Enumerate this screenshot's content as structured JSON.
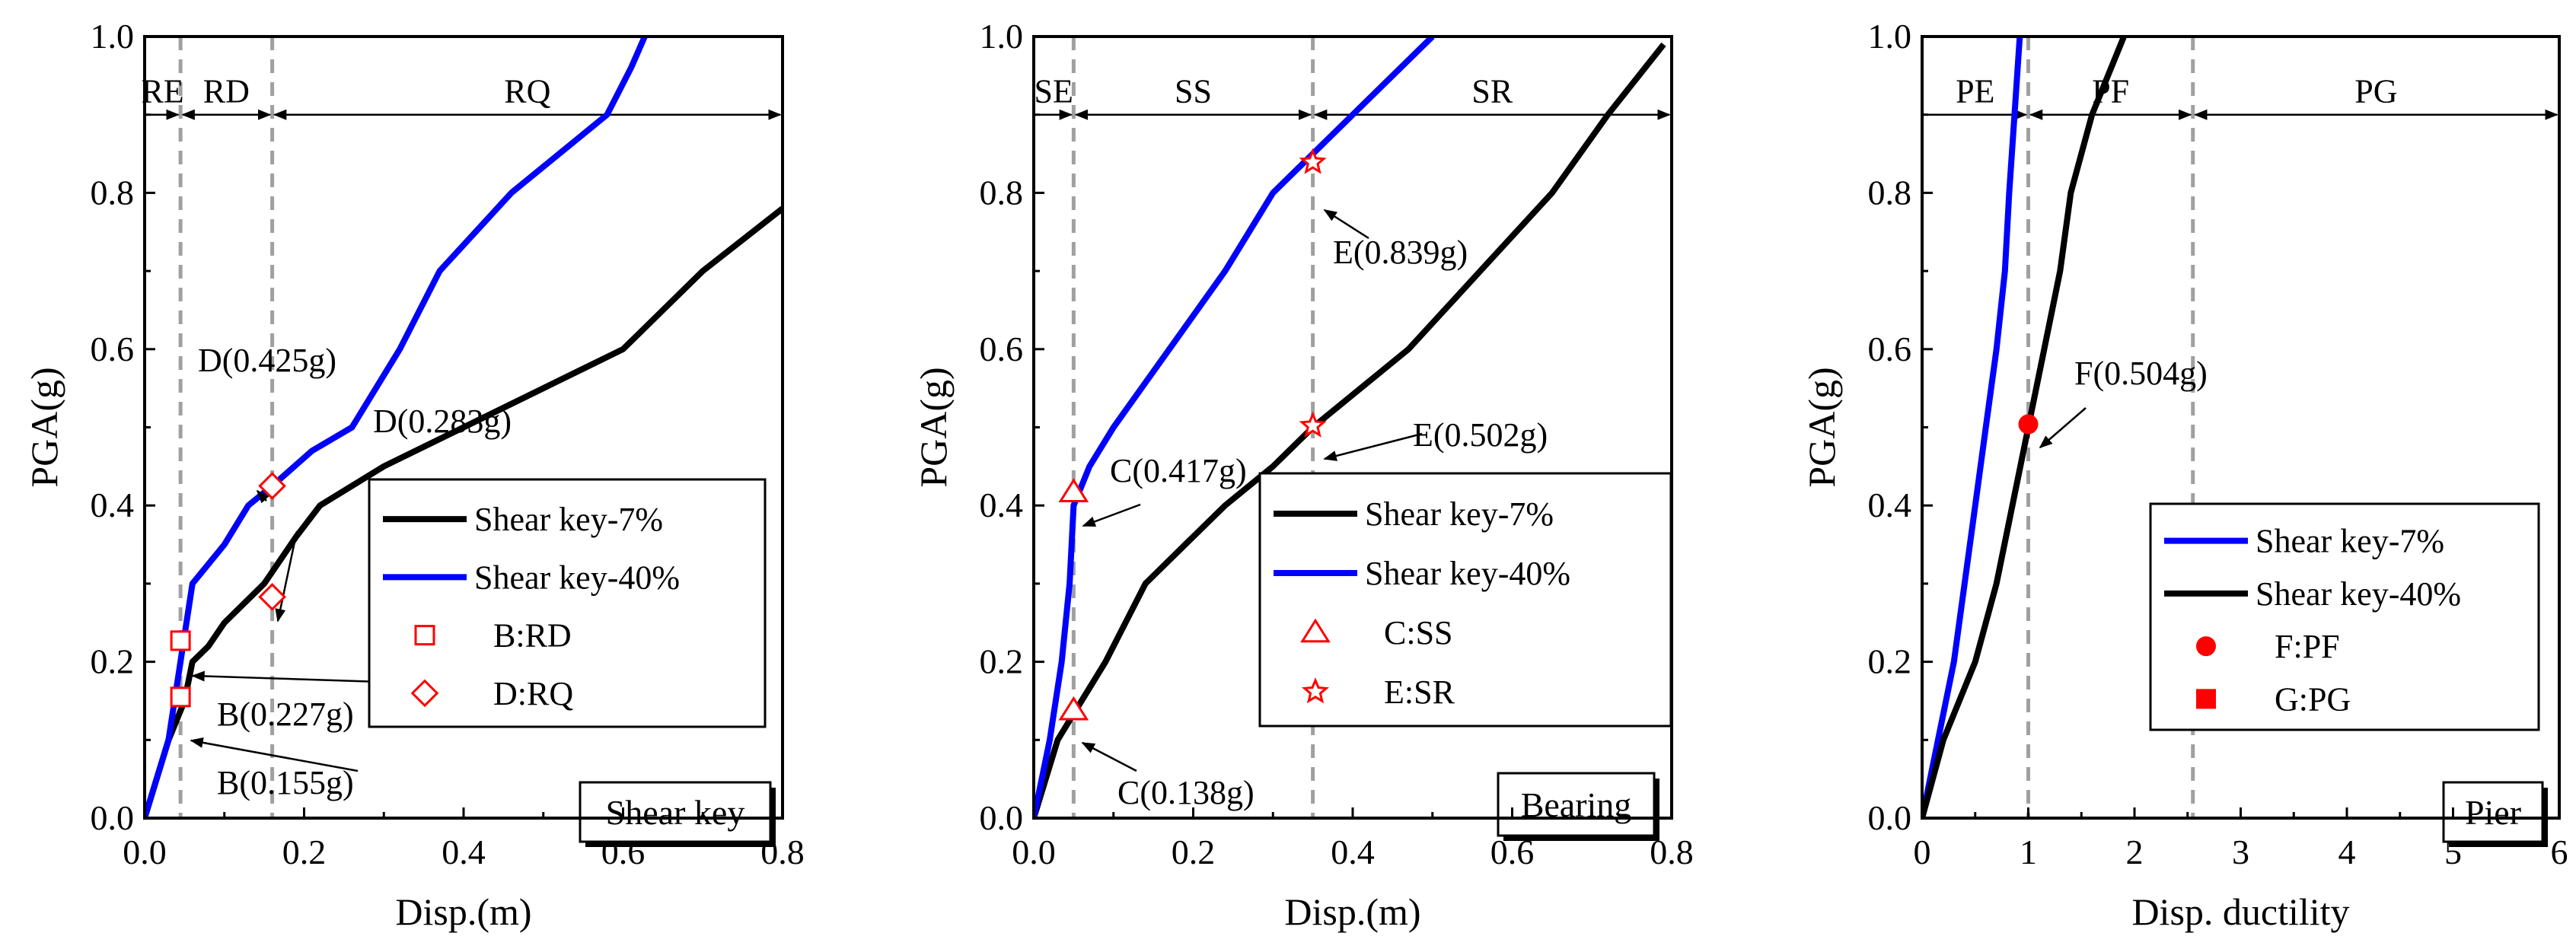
{
  "chart_data": [
    {
      "type": "line",
      "panel": "shear-key",
      "title": "Shear key",
      "xlabel": "Disp.(m)",
      "ylabel": "PGA(g)",
      "xlim": [
        0,
        0.8
      ],
      "ylim": [
        0,
        1.0
      ],
      "x_ticks": [
        0.0,
        0.2,
        0.4,
        0.6,
        0.8
      ],
      "y_ticks": [
        0.0,
        0.2,
        0.4,
        0.6,
        0.8,
        1.0
      ],
      "x_tick_labels": [
        "0.0",
        "0.2",
        "0.4",
        "0.6",
        "0.8"
      ],
      "y_tick_labels": [
        "0.0",
        "0.2",
        "0.4",
        "0.6",
        "0.8",
        "1.0"
      ],
      "legend_position": "middle-right",
      "series": [
        {
          "name": "Shear key-7%",
          "color": "#000000",
          "points": [
            [
              0,
              0
            ],
            [
              0.03,
              0.1
            ],
            [
              0.05,
              0.15
            ],
            [
              0.06,
              0.2
            ],
            [
              0.08,
              0.22
            ],
            [
              0.1,
              0.25
            ],
            [
              0.15,
              0.3
            ],
            [
              0.19,
              0.36
            ],
            [
              0.22,
              0.4
            ],
            [
              0.3,
              0.45
            ],
            [
              0.4,
              0.5
            ],
            [
              0.5,
              0.55
            ],
            [
              0.6,
              0.6
            ],
            [
              0.7,
              0.7
            ],
            [
              0.8,
              0.78
            ]
          ]
        },
        {
          "name": "Shear key-40%",
          "color": "#0000ff",
          "points": [
            [
              0,
              0
            ],
            [
              0.03,
              0.1
            ],
            [
              0.045,
              0.2
            ],
            [
              0.06,
              0.3
            ],
            [
              0.1,
              0.35
            ],
            [
              0.13,
              0.4
            ],
            [
              0.16,
              0.425
            ],
            [
              0.21,
              0.47
            ],
            [
              0.26,
              0.5
            ],
            [
              0.32,
              0.6
            ],
            [
              0.37,
              0.7
            ],
            [
              0.46,
              0.8
            ],
            [
              0.58,
              0.9
            ],
            [
              0.61,
              0.96
            ],
            [
              0.64,
              1.03
            ]
          ]
        }
      ],
      "limit_state_lines": [
        0.045,
        0.16
      ],
      "regions": [
        {
          "label": "RE",
          "from": 0,
          "to": 0.045
        },
        {
          "label": "RD",
          "from": 0.045,
          "to": 0.16
        },
        {
          "label": "RQ",
          "from": 0.16,
          "to": 0.8
        }
      ],
      "region_arrow_y": 0.9,
      "marker_legend": [
        {
          "label": "B:RD",
          "marker": "square"
        },
        {
          "label": "D:RQ",
          "marker": "diamond"
        }
      ],
      "markers": [
        {
          "x": 0.045,
          "y": 0.227,
          "marker": "square",
          "label": "B(0.227g)"
        },
        {
          "x": 0.045,
          "y": 0.155,
          "marker": "square",
          "label": "B(0.155g)"
        },
        {
          "x": 0.16,
          "y": 0.425,
          "marker": "diamond",
          "label": "D(0.425g)"
        },
        {
          "x": 0.16,
          "y": 0.283,
          "marker": "diamond",
          "label": "D(0.283g)"
        }
      ]
    },
    {
      "type": "line",
      "panel": "bearing",
      "title": "Bearing",
      "xlabel": "Disp.(m)",
      "ylabel": "PGA(g)",
      "xlim": [
        0,
        0.8
      ],
      "ylim": [
        0,
        1.0
      ],
      "x_ticks": [
        0.0,
        0.2,
        0.4,
        0.6,
        0.8
      ],
      "y_ticks": [
        0.0,
        0.2,
        0.4,
        0.6,
        0.8,
        1.0
      ],
      "x_tick_labels": [
        "0.0",
        "0.2",
        "0.4",
        "0.6",
        "0.8"
      ],
      "y_tick_labels": [
        "0.0",
        "0.2",
        "0.4",
        "0.6",
        "0.8",
        "1.0"
      ],
      "legend_position": "middle-right",
      "series": [
        {
          "name": "Shear key-7%",
          "color": "#000000",
          "points": [
            [
              0,
              0
            ],
            [
              0.03,
              0.1
            ],
            [
              0.06,
              0.15
            ],
            [
              0.09,
              0.2
            ],
            [
              0.14,
              0.3
            ],
            [
              0.19,
              0.35
            ],
            [
              0.24,
              0.4
            ],
            [
              0.3,
              0.45
            ],
            [
              0.35,
              0.5
            ],
            [
              0.47,
              0.6
            ],
            [
              0.56,
              0.7
            ],
            [
              0.65,
              0.8
            ],
            [
              0.72,
              0.9
            ],
            [
              0.79,
              0.99
            ]
          ]
        },
        {
          "name": "Shear key-40%",
          "color": "#0000ff",
          "points": [
            [
              0,
              0
            ],
            [
              0.02,
              0.1
            ],
            [
              0.035,
              0.2
            ],
            [
              0.045,
              0.3
            ],
            [
              0.05,
              0.4
            ],
            [
              0.07,
              0.45
            ],
            [
              0.1,
              0.5
            ],
            [
              0.17,
              0.6
            ],
            [
              0.24,
              0.7
            ],
            [
              0.3,
              0.8
            ],
            [
              0.35,
              0.85
            ],
            [
              0.4,
              0.9
            ],
            [
              0.5,
              1.0
            ]
          ]
        }
      ],
      "limit_state_lines": [
        0.05,
        0.35
      ],
      "regions": [
        {
          "label": "SE",
          "from": 0,
          "to": 0.05
        },
        {
          "label": "SS",
          "from": 0.05,
          "to": 0.35
        },
        {
          "label": "SR",
          "from": 0.35,
          "to": 0.8
        }
      ],
      "region_arrow_y": 0.9,
      "marker_legend": [
        {
          "label": "C:SS",
          "marker": "triangle"
        },
        {
          "label": "E:SR",
          "marker": "star"
        }
      ],
      "markers": [
        {
          "x": 0.05,
          "y": 0.417,
          "marker": "triangle",
          "label": "C(0.417g)"
        },
        {
          "x": 0.05,
          "y": 0.138,
          "marker": "triangle",
          "label": "C(0.138g)"
        },
        {
          "x": 0.35,
          "y": 0.839,
          "marker": "star",
          "label": "E(0.839g)"
        },
        {
          "x": 0.35,
          "y": 0.502,
          "marker": "star",
          "label": "E(0.502g)"
        }
      ]
    },
    {
      "type": "line",
      "panel": "pier",
      "title": "Pier",
      "xlabel": "Disp. ductility",
      "ylabel": "PGA(g)",
      "xlim": [
        0,
        6
      ],
      "ylim": [
        0,
        1.0
      ],
      "x_ticks": [
        0,
        1,
        2,
        3,
        4,
        5,
        6
      ],
      "y_ticks": [
        0.0,
        0.2,
        0.4,
        0.6,
        0.8,
        1.0
      ],
      "x_tick_labels": [
        "0",
        "1",
        "2",
        "3",
        "4",
        "5",
        "6"
      ],
      "y_tick_labels": [
        "0.0",
        "0.2",
        "0.4",
        "0.6",
        "0.8",
        "1.0"
      ],
      "legend_position": "middle-right",
      "series": [
        {
          "name": "Shear key-7%",
          "color": "#0000ff",
          "points": [
            [
              0,
              0
            ],
            [
              0.15,
              0.1
            ],
            [
              0.3,
              0.2
            ],
            [
              0.4,
              0.3
            ],
            [
              0.5,
              0.4
            ],
            [
              0.6,
              0.5
            ],
            [
              0.7,
              0.6
            ],
            [
              0.78,
              0.7
            ],
            [
              0.82,
              0.8
            ],
            [
              0.87,
              0.9
            ],
            [
              0.92,
              1.0
            ]
          ]
        },
        {
          "name": "Shear key-40%",
          "color": "#000000",
          "points": [
            [
              0,
              0
            ],
            [
              0.2,
              0.1
            ],
            [
              0.5,
              0.2
            ],
            [
              0.7,
              0.3
            ],
            [
              0.85,
              0.4
            ],
            [
              1,
              0.5
            ],
            [
              1.15,
              0.6
            ],
            [
              1.3,
              0.7
            ],
            [
              1.4,
              0.8
            ],
            [
              1.6,
              0.9
            ],
            [
              1.9,
              1.0
            ]
          ]
        }
      ],
      "limit_state_lines": [
        1,
        2.55
      ],
      "regions": [
        {
          "label": "PE",
          "from": 0,
          "to": 1
        },
        {
          "label": "PF",
          "from": 1,
          "to": 2.55
        },
        {
          "label": "PG",
          "from": 2.55,
          "to": 6
        }
      ],
      "region_arrow_y": 0.9,
      "marker_legend": [
        {
          "label": "F:PF",
          "marker": "circle"
        },
        {
          "label": "G:PG",
          "marker": "filled-square"
        }
      ],
      "markers": [
        {
          "x": 1.0,
          "y": 0.504,
          "marker": "circle",
          "label": "F(0.504g)"
        }
      ]
    }
  ],
  "colors": {
    "marker": "#ff0000",
    "limit_line": "#a0a0a0",
    "axis": "#000000"
  }
}
